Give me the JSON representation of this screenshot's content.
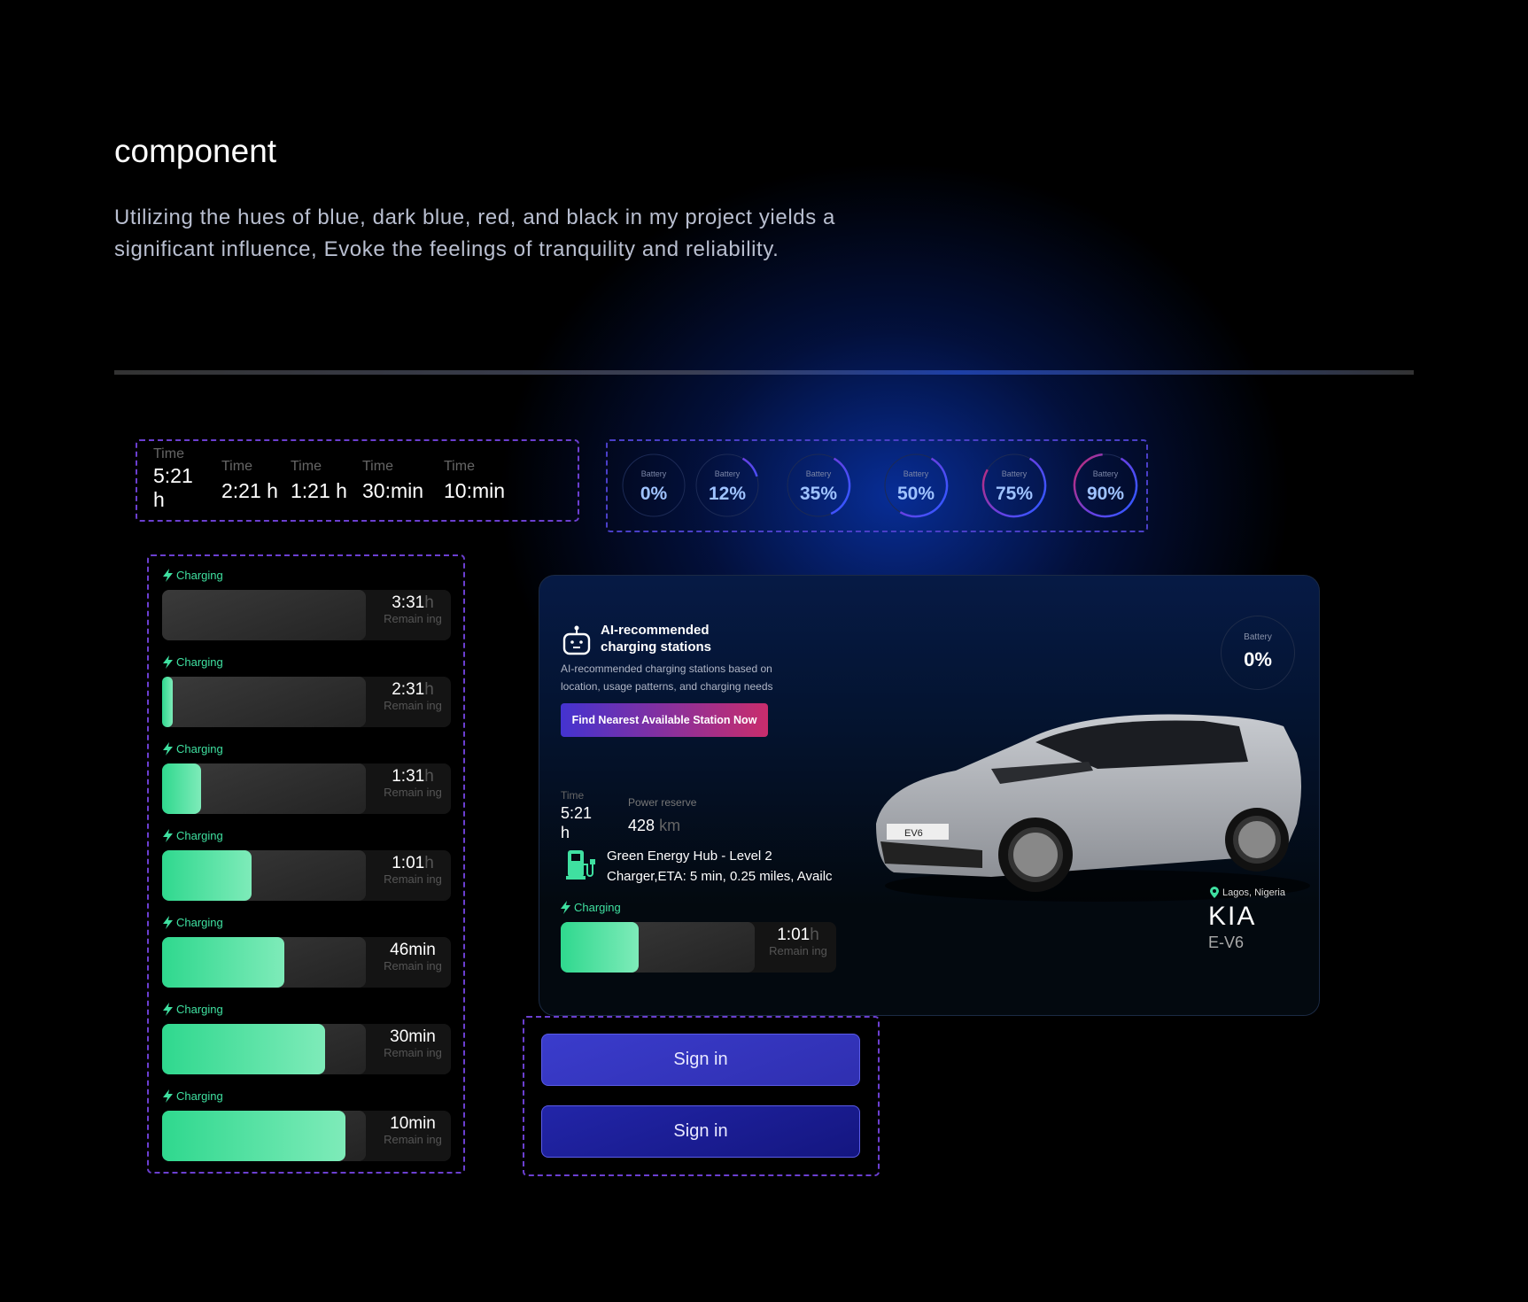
{
  "header": {
    "title": "component",
    "description": "Utilizing the hues of blue, dark blue, red, and black in my project yields a significant influence, Evoke the feelings of tranquility and reliability."
  },
  "colors": {
    "accent_green": "#3fe0a0",
    "dashed_border": "#6b3fd0",
    "button_blue": "#3637c7",
    "button_dark_blue": "#1c1e9a",
    "gradient_button": [
      "#4433d0",
      "#c92d6c"
    ]
  },
  "time_components": [
    {
      "label": "Time",
      "value": "5:21 h"
    },
    {
      "label": "Time",
      "value": "2:21 h"
    },
    {
      "label": "Time",
      "value": "1:21 h"
    },
    {
      "label": "Time",
      "value": "30:min"
    },
    {
      "label": "Time",
      "value": "10:min"
    }
  ],
  "battery_components": [
    {
      "label": "Battery",
      "value": "0%",
      "percent": 0
    },
    {
      "label": "Battery",
      "value": "12%",
      "percent": 12
    },
    {
      "label": "Battery",
      "value": "35%",
      "percent": 35
    },
    {
      "label": "Battery",
      "value": "50%",
      "percent": 50
    },
    {
      "label": "Battery",
      "value": "75%",
      "percent": 75
    },
    {
      "label": "Battery",
      "value": "90%",
      "percent": 90
    }
  ],
  "charging_components": [
    {
      "label": "Charging",
      "time": "3:31",
      "unit": "h",
      "remaining": "Remain ing",
      "progress": 0
    },
    {
      "label": "Charging",
      "time": "2:31",
      "unit": "h",
      "remaining": "Remain ing",
      "progress": 5
    },
    {
      "label": "Charging",
      "time": "1:31",
      "unit": "h",
      "remaining": "Remain ing",
      "progress": 19
    },
    {
      "label": "Charging",
      "time": "1:01",
      "unit": "h",
      "remaining": "Remain ing",
      "progress": 44
    },
    {
      "label": "Charging",
      "time": "46min",
      "unit": "",
      "remaining": "Remain ing",
      "progress": 60
    },
    {
      "label": "Charging",
      "time": "30min",
      "unit": "",
      "remaining": "Remain ing",
      "progress": 80
    },
    {
      "label": "Charging",
      "time": "10min",
      "unit": "",
      "remaining": "Remain ing",
      "progress": 90
    }
  ],
  "card": {
    "ai_title": "AI-recommended charging stations",
    "ai_description": "AI-recommended charging stations based on location, usage patterns, and charging needs",
    "find_button": "Find Nearest Available Station Now",
    "time_label": "Time",
    "time_value": "5:21 h",
    "power_label": "Power reserve",
    "power_value": "428",
    "power_unit": "km",
    "station_line1": "Green Energy Hub - Level 2",
    "station_line2": "Charger,ETA: 5 min, 0.25 miles, Availc",
    "charging_label": "Charging",
    "charging_time": "1:01",
    "charging_unit": "h",
    "charging_remaining": "Remain ing",
    "charging_progress": 40,
    "battery_label": "Battery",
    "battery_value": "0%",
    "location": "Lagos, Nigeria",
    "brand": "KIA",
    "model": "E-V6",
    "plate": "EV6"
  },
  "sign_in": {
    "button1": "Sign in",
    "button2": "Sign in"
  }
}
